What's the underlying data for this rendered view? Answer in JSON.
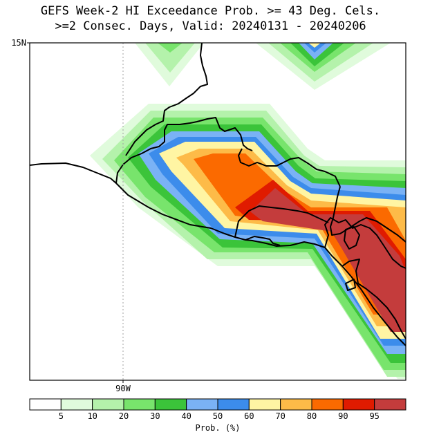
{
  "title_line1": "GEFS Week-2 HI Exceedance Prob. >= 43 Deg. Cels.",
  "title_line2": ">=2 Consec. Days, Valid: 20240131 - 20240206",
  "lat_label": "15N",
  "lon_label": "90W",
  "colorbar": {
    "title": "Prob. (%)",
    "tick_labels": [
      "5",
      "10",
      "20",
      "30",
      "40",
      "50",
      "60",
      "70",
      "80",
      "90",
      "95"
    ],
    "colors": [
      "#ffffff",
      "#e0fbdc",
      "#b4f2ab",
      "#78e46c",
      "#3bc43a",
      "#7ab2f5",
      "#3c8ceb",
      "#fff5a3",
      "#fdbb48",
      "#fb6a00",
      "#e01b00",
      "#c43c3c"
    ]
  },
  "colors": {
    "coast": "#000000",
    "background": "#ffffff",
    "gridline": "#a0a0a0"
  }
}
